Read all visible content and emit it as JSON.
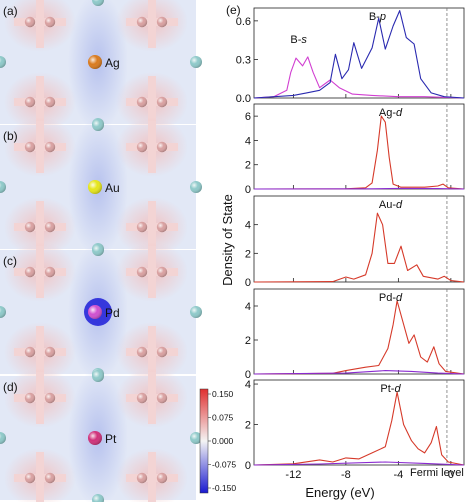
{
  "panel_letters": [
    "(a)",
    "(b)",
    "(c)",
    "(d)",
    "(e)"
  ],
  "atoms": [
    {
      "label": "Ag",
      "color": "#d97a1e"
    },
    {
      "label": "Au",
      "color": "#e6e61a"
    },
    {
      "label": "Pd",
      "color": "#d050d0"
    },
    {
      "label": "Pt",
      "color": "#d0307a"
    }
  ],
  "colorbar": {
    "ticks": [
      "0.150",
      "0.075",
      "0.000",
      "-0.075",
      "-0.150"
    ],
    "top_color": "#e03030",
    "mid_color": "#f4f4f4",
    "bottom_color": "#1a1ad0"
  },
  "colors": {
    "map_bg": "#e2e8f6",
    "positive": "#f3d4d4",
    "negative": "#c4cdf0",
    "boron": "#d9a0a0",
    "host_atom": "#8ec9c9",
    "s_series": "#d13fd1",
    "p_series": "#2a2ab0",
    "d_series": "#d63a2a",
    "minor_series": "#8a2ad0"
  },
  "chart_data": {
    "type": "line",
    "xlabel": "Energy (eV)",
    "ylabel": "Density of State",
    "xlim": [
      -15,
      1
    ],
    "x_ticks": [
      "-12",
      "-8",
      "-4",
      "0"
    ],
    "fermi_label": "Fermi level",
    "fermi_x": -0.3,
    "panels": [
      {
        "label": "B-p",
        "label_parts": [
          "B-",
          "p"
        ],
        "extra_label_parts": [
          "B-",
          "s"
        ],
        "ylim": [
          0,
          0.7
        ],
        "y_ticks": [
          "0.0",
          "0.3",
          "0.6"
        ],
        "series": [
          {
            "name": "B-s",
            "color_key": "s_series",
            "points": [
              [
                -15,
                0
              ],
              [
                -13.5,
                0.01
              ],
              [
                -12.5,
                0.06
              ],
              [
                -12.2,
                0.2
              ],
              [
                -11.8,
                0.31
              ],
              [
                -11.3,
                0.25
              ],
              [
                -10.9,
                0.32
              ],
              [
                -10.5,
                0.2
              ],
              [
                -10,
                0.08
              ],
              [
                -9.2,
                0.14
              ],
              [
                -8.5,
                0.08
              ],
              [
                -7.5,
                0.03
              ],
              [
                -6,
                0.02
              ],
              [
                -4,
                0.01
              ],
              [
                -2,
                0.01
              ],
              [
                1,
                0
              ]
            ]
          },
          {
            "name": "B-p",
            "color_key": "p_series",
            "points": [
              [
                -15,
                0
              ],
              [
                -12,
                0.02
              ],
              [
                -11,
                0.04
              ],
              [
                -10,
                0.06
              ],
              [
                -9.2,
                0.12
              ],
              [
                -8.8,
                0.34
              ],
              [
                -8.3,
                0.15
              ],
              [
                -7.8,
                0.22
              ],
              [
                -7.4,
                0.43
              ],
              [
                -6.8,
                0.23
              ],
              [
                -6,
                0.39
              ],
              [
                -5.5,
                0.62
              ],
              [
                -5,
                0.38
              ],
              [
                -4.4,
                0.56
              ],
              [
                -3.9,
                0.68
              ],
              [
                -3.4,
                0.47
              ],
              [
                -2.8,
                0.42
              ],
              [
                -2.3,
                0.15
              ],
              [
                -1.5,
                0.04
              ],
              [
                -0.5,
                0.01
              ],
              [
                1,
                0
              ]
            ]
          }
        ]
      },
      {
        "label": "Ag-d",
        "label_parts": [
          "Ag-",
          "d"
        ],
        "ylim": [
          0,
          7
        ],
        "y_ticks": [
          "0",
          "2",
          "4",
          "6"
        ],
        "series": [
          {
            "name": "Ag-d",
            "color_key": "d_series",
            "points": [
              [
                -15,
                0
              ],
              [
                -8,
                0.02
              ],
              [
                -6.5,
                0.1
              ],
              [
                -6,
                0.5
              ],
              [
                -5.6,
                3.2
              ],
              [
                -5.3,
                6.0
              ],
              [
                -5.0,
                5.5
              ],
              [
                -4.7,
                2.6
              ],
              [
                -4.4,
                0.4
              ],
              [
                -3.8,
                0.15
              ],
              [
                -2,
                0.15
              ],
              [
                -1,
                0.25
              ],
              [
                -0.6,
                0.4
              ],
              [
                -0.2,
                0.1
              ],
              [
                1,
                0
              ]
            ]
          },
          {
            "name": "minor",
            "color_key": "minor_series",
            "points": [
              [
                -15,
                0
              ],
              [
                -6,
                0.02
              ],
              [
                -4,
                0.05
              ],
              [
                -1,
                0.03
              ],
              [
                1,
                0
              ]
            ]
          }
        ]
      },
      {
        "label": "Au-d",
        "label_parts": [
          "Au-",
          "d"
        ],
        "ylim": [
          0,
          6
        ],
        "y_ticks": [
          "0",
          "2",
          "4"
        ],
        "series": [
          {
            "name": "Au-d",
            "color_key": "d_series",
            "points": [
              [
                -15,
                0
              ],
              [
                -9,
                0.03
              ],
              [
                -8,
                0.35
              ],
              [
                -7.4,
                0.2
              ],
              [
                -6.5,
                0.5
              ],
              [
                -6,
                2.0
              ],
              [
                -5.6,
                4.8
              ],
              [
                -5.2,
                4.0
              ],
              [
                -4.8,
                1.3
              ],
              [
                -4.3,
                1.3
              ],
              [
                -3.8,
                2.5
              ],
              [
                -3.3,
                0.8
              ],
              [
                -2.6,
                1.2
              ],
              [
                -2.1,
                0.4
              ],
              [
                -1,
                0.2
              ],
              [
                -0.5,
                0.4
              ],
              [
                0,
                0.1
              ],
              [
                1,
                0
              ]
            ]
          }
        ]
      },
      {
        "label": "Pd-d",
        "label_parts": [
          "Pd-",
          "d"
        ],
        "ylim": [
          0,
          5
        ],
        "y_ticks": [
          "0",
          "2",
          "4"
        ],
        "series": [
          {
            "name": "Pd-d",
            "color_key": "d_series",
            "points": [
              [
                -15,
                0
              ],
              [
                -9,
                0.04
              ],
              [
                -8,
                0.2
              ],
              [
                -6.5,
                0.4
              ],
              [
                -5.5,
                0.5
              ],
              [
                -4.8,
                1.5
              ],
              [
                -4.4,
                2.9
              ],
              [
                -4.1,
                4.3
              ],
              [
                -3.7,
                3.2
              ],
              [
                -3.2,
                1.8
              ],
              [
                -2.8,
                2.3
              ],
              [
                -2.3,
                1.0
              ],
              [
                -1.8,
                0.7
              ],
              [
                -1.3,
                1.6
              ],
              [
                -0.9,
                0.6
              ],
              [
                -0.4,
                0.15
              ],
              [
                1,
                0
              ]
            ]
          },
          {
            "name": "minor",
            "color_key": "minor_series",
            "points": [
              [
                -15,
                0
              ],
              [
                -8,
                0.05
              ],
              [
                -5,
                0.2
              ],
              [
                -3,
                0.15
              ],
              [
                -1,
                0.05
              ],
              [
                1,
                0
              ]
            ]
          }
        ]
      },
      {
        "label": "Pt-d",
        "label_parts": [
          "Pt-",
          "d"
        ],
        "ylim": [
          0,
          4.2
        ],
        "y_ticks": [
          "0",
          "2",
          "4"
        ],
        "series": [
          {
            "name": "Pt-d",
            "color_key": "d_series",
            "points": [
              [
                -15,
                0
              ],
              [
                -12,
                0.06
              ],
              [
                -10,
                0.25
              ],
              [
                -9,
                0.15
              ],
              [
                -8,
                0.35
              ],
              [
                -7,
                0.3
              ],
              [
                -6,
                0.6
              ],
              [
                -5,
                0.9
              ],
              [
                -4.5,
                2.2
              ],
              [
                -4.1,
                3.6
              ],
              [
                -3.6,
                2.0
              ],
              [
                -3,
                1.2
              ],
              [
                -2.5,
                0.8
              ],
              [
                -2,
                0.6
              ],
              [
                -1.5,
                1.1
              ],
              [
                -1.1,
                1.9
              ],
              [
                -0.7,
                0.5
              ],
              [
                -0.2,
                0.15
              ],
              [
                1,
                0
              ]
            ]
          },
          {
            "name": "minor",
            "color_key": "minor_series",
            "points": [
              [
                -15,
                0
              ],
              [
                -10,
                0.05
              ],
              [
                -5,
                0.15
              ],
              [
                -2,
                0.08
              ],
              [
                1,
                0
              ]
            ]
          }
        ]
      }
    ]
  }
}
